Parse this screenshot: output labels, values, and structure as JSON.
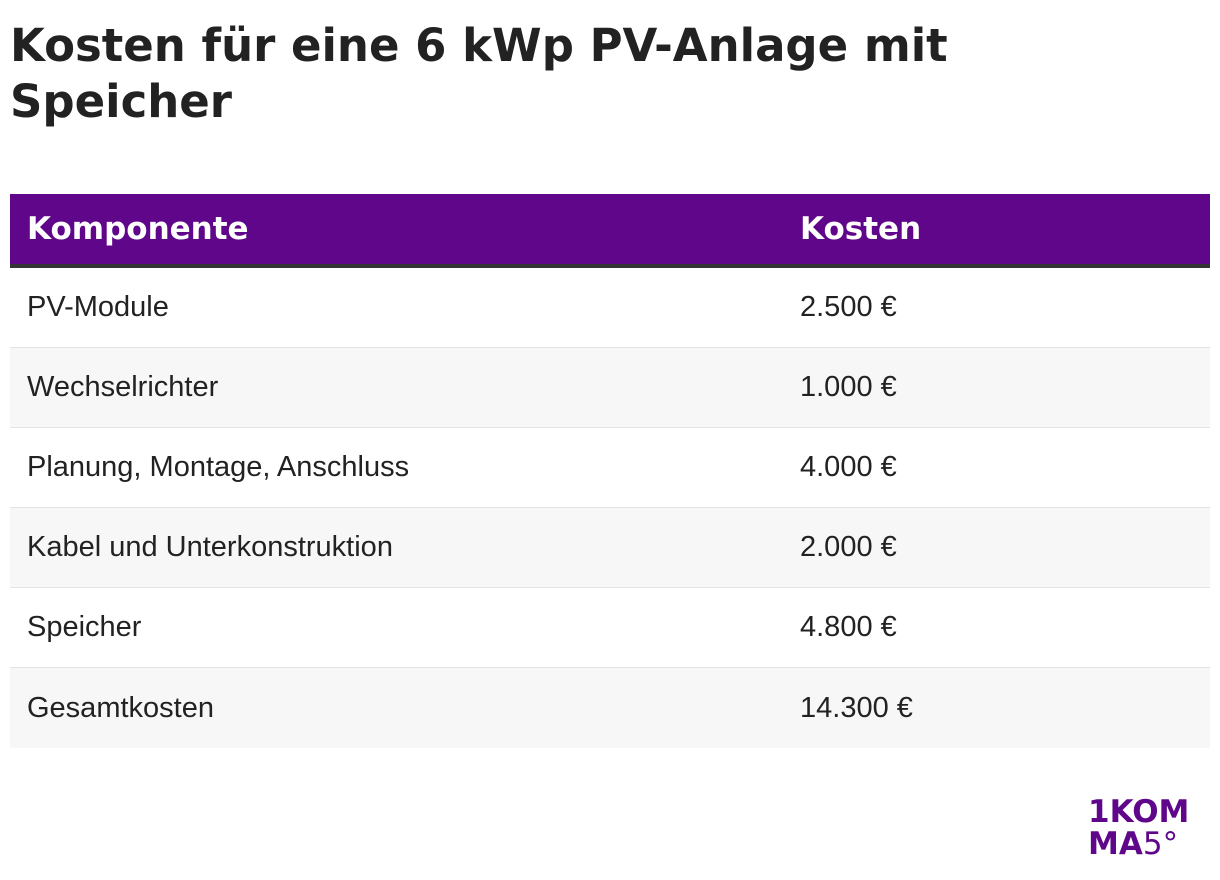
{
  "title": "Kosten für eine 6 kWp PV-Anlage mit Speicher",
  "colors": {
    "header_bg": "#5f068a",
    "header_text": "#ffffff",
    "row_alt_bg": "#f7f7f7",
    "logo": "#5f068a"
  },
  "chart_data": {
    "type": "table",
    "columns": [
      "Komponente",
      "Kosten"
    ],
    "rows": [
      [
        "PV-Module",
        "2.500 €"
      ],
      [
        "Wechselrichter",
        "1.000 €"
      ],
      [
        "Planung, Montage, Anschluss",
        "4.000 €"
      ],
      [
        "Kabel und Unterkonstruktion",
        "2.000 €"
      ],
      [
        "Speicher",
        "4.800 €"
      ],
      [
        "Gesamtkosten",
        "14.300 €"
      ]
    ]
  },
  "logo": {
    "line1": "1KOM",
    "line2_bold": "MA",
    "line2_thin": "5°"
  }
}
